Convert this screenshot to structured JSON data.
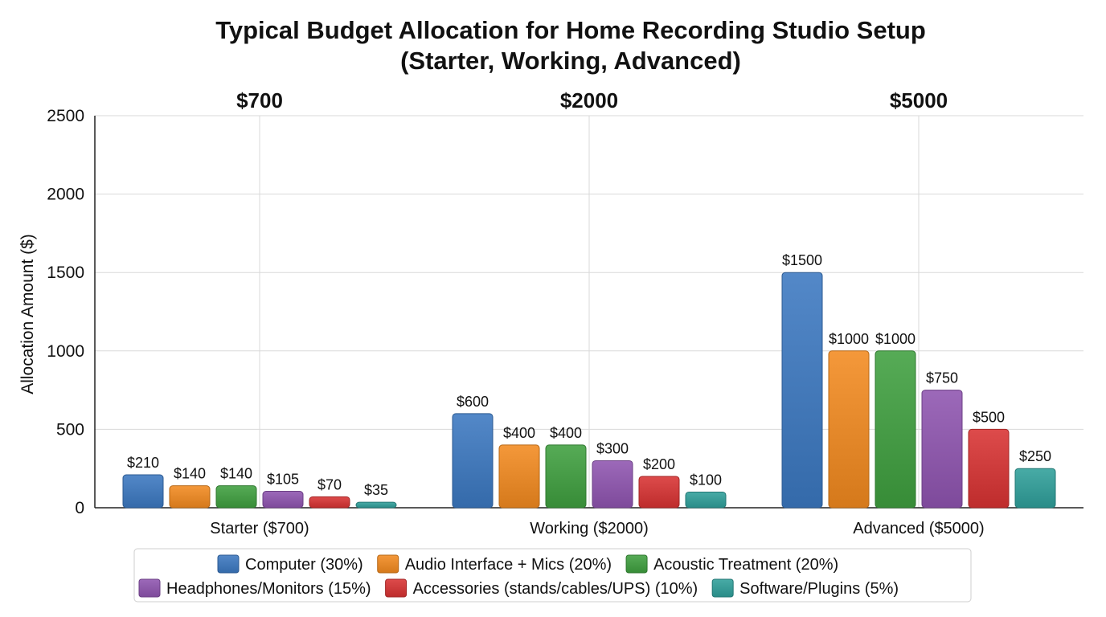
{
  "chart_data": {
    "type": "bar",
    "title": "Typical Budget Allocation for Home Recording Studio Setup\n(Starter, Working, Advanced)",
    "xlabel": "",
    "ylabel": "Allocation Amount ($)",
    "ylim": [
      0,
      2500
    ],
    "yticks": [
      0,
      500,
      1000,
      1500,
      2000,
      2500
    ],
    "grid": true,
    "legend_position": "bottom",
    "categories": [
      "Starter ($700)",
      "Working ($2000)",
      "Advanced ($5000)"
    ],
    "totals": [
      "$700",
      "$2000",
      "$5000"
    ],
    "series": [
      {
        "name": "Computer (30%)",
        "color": "#3b78c1",
        "values": [
          210,
          600,
          1500
        ],
        "labels": [
          "$210",
          "$600",
          "$1500"
        ]
      },
      {
        "name": "Audio Interface + Mics (20%)",
        "color": "#f28a1f",
        "values": [
          140,
          400,
          1000
        ],
        "labels": [
          "$140",
          "$400",
          "$1000"
        ]
      },
      {
        "name": "Acoustic Treatment (20%)",
        "color": "#3f9f3f",
        "values": [
          140,
          400,
          1000
        ],
        "labels": [
          "$140",
          "$400",
          "$1000"
        ]
      },
      {
        "name": "Headphones/Monitors (15%)",
        "color": "#8f54b0",
        "values": [
          105,
          300,
          750
        ],
        "labels": [
          "$105",
          "$300",
          "$750"
        ]
      },
      {
        "name": "Accessories (stands/cables/UPS) (10%)",
        "color": "#d83232",
        "values": [
          70,
          200,
          500
        ],
        "labels": [
          "$70",
          "$200",
          "$500"
        ]
      },
      {
        "name": "Software/Plugins (5%)",
        "color": "#2f9f9a",
        "values": [
          35,
          100,
          250
        ],
        "labels": [
          "$35",
          "$100",
          "$250"
        ]
      }
    ]
  }
}
